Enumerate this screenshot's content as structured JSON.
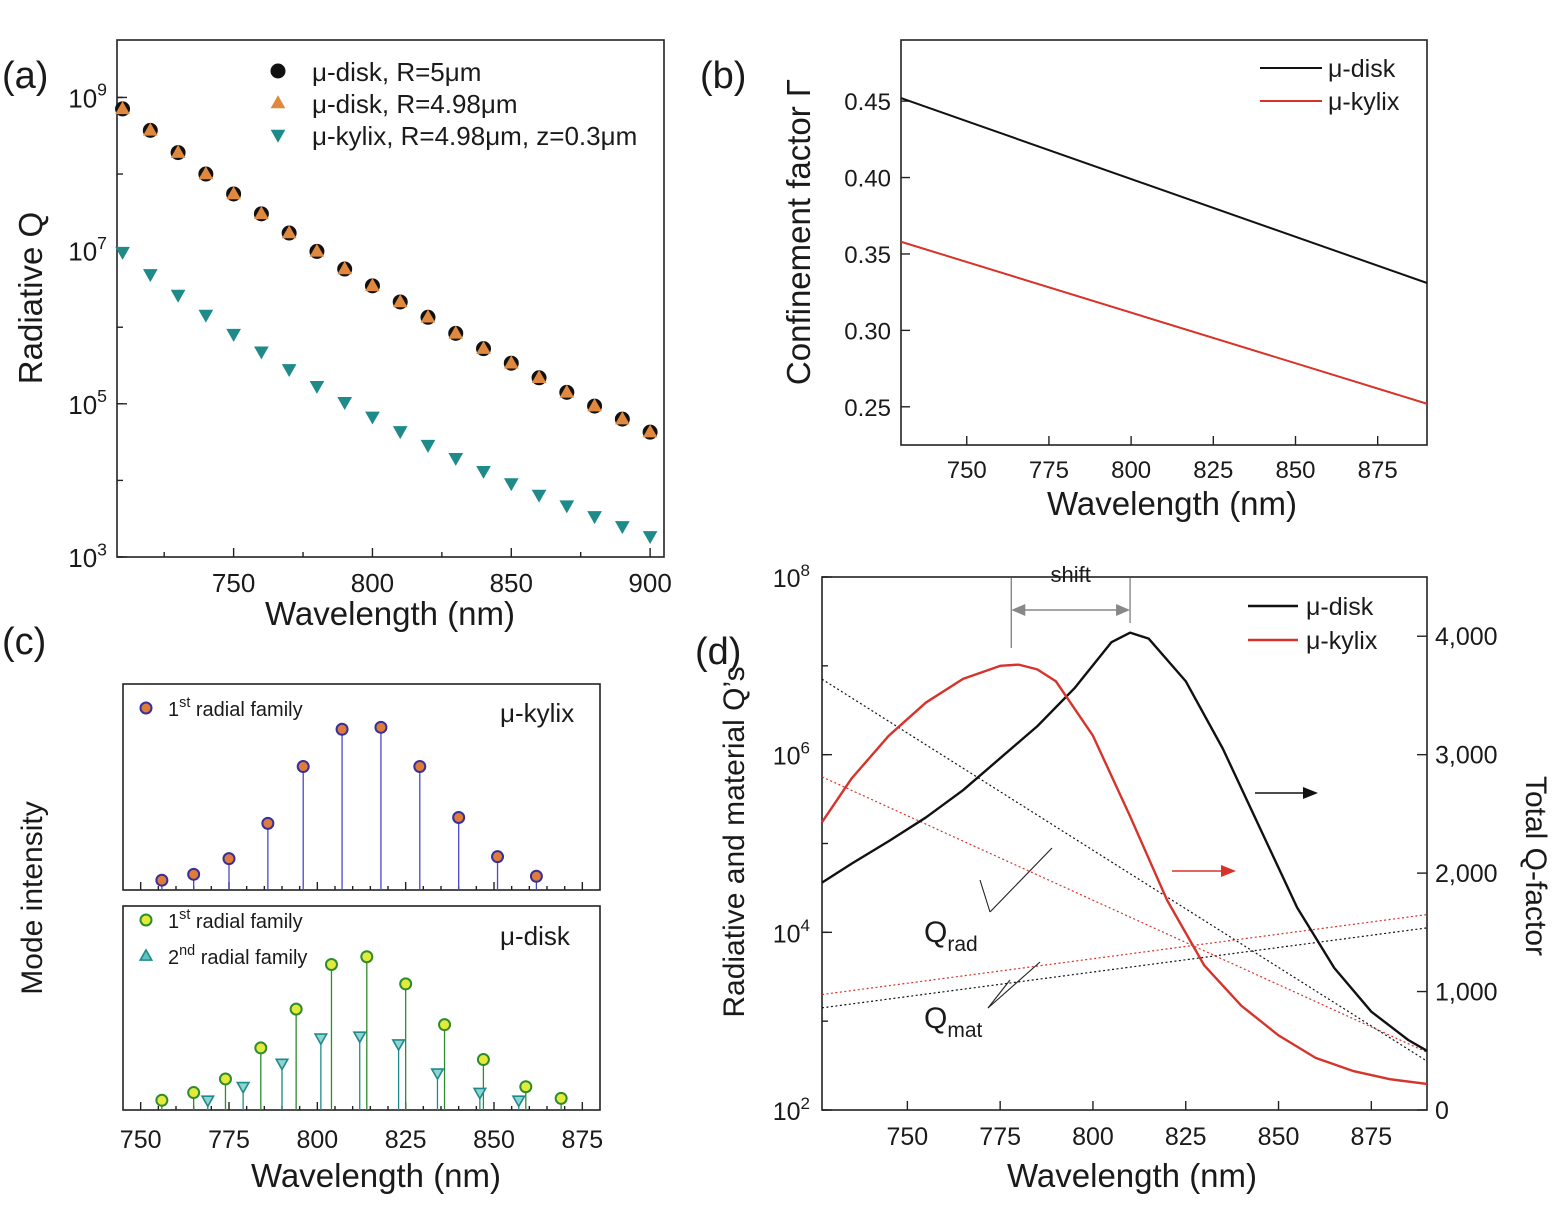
{
  "chart_data": [
    {
      "id": "a",
      "panel_label": "(a)",
      "type": "scatter",
      "yscale": "log",
      "xlabel": "Wavelength (nm)",
      "ylabel": "Radiative Q",
      "xlim": [
        708,
        905
      ],
      "ylim_log10": [
        3,
        9.75
      ],
      "xticks": [
        "750",
        "800",
        "850",
        "900"
      ],
      "yticks": [
        {
          "base": "10",
          "exp": "3"
        },
        {
          "base": "10",
          "exp": "5"
        },
        {
          "base": "10",
          "exp": "7"
        },
        {
          "base": "10",
          "exp": "9"
        }
      ],
      "legend_position": "top-right",
      "series": [
        {
          "name": "μ-disk, R=5μm",
          "marker": "circle",
          "color": "#111111",
          "x": [
            710,
            720,
            730,
            740,
            750,
            760,
            770,
            780,
            790,
            800,
            810,
            820,
            830,
            840,
            850,
            860,
            870,
            880,
            890,
            900
          ],
          "log10_q": [
            8.85,
            8.57,
            8.28,
            8.0,
            7.74,
            7.48,
            7.23,
            6.99,
            6.76,
            6.54,
            6.33,
            6.13,
            5.92,
            5.72,
            5.53,
            5.34,
            5.15,
            4.97,
            4.8,
            4.63
          ]
        },
        {
          "name": "μ-disk, R=4.98μm",
          "marker": "triangle-up",
          "color": "#e0893e",
          "x": [
            710,
            720,
            730,
            740,
            750,
            760,
            770,
            780,
            790,
            800,
            810,
            820,
            830,
            840,
            850,
            860,
            870,
            880,
            890,
            900
          ],
          "log10_q": [
            8.85,
            8.57,
            8.28,
            8.0,
            7.74,
            7.48,
            7.23,
            6.99,
            6.76,
            6.54,
            6.33,
            6.13,
            5.92,
            5.72,
            5.53,
            5.34,
            5.15,
            4.97,
            4.8,
            4.63
          ]
        },
        {
          "name": "μ-kylix, R=4.98μm, z=0.3μm",
          "marker": "triangle-down",
          "color": "#1f8a8a",
          "x": [
            710,
            720,
            730,
            740,
            750,
            760,
            770,
            780,
            790,
            800,
            810,
            820,
            830,
            840,
            850,
            860,
            870,
            880,
            890,
            900
          ],
          "log10_q": [
            6.98,
            6.69,
            6.42,
            6.16,
            5.91,
            5.68,
            5.45,
            5.23,
            5.02,
            4.83,
            4.64,
            4.46,
            4.29,
            4.12,
            3.96,
            3.81,
            3.67,
            3.53,
            3.4,
            3.27
          ]
        }
      ]
    },
    {
      "id": "b",
      "panel_label": "(b)",
      "type": "line",
      "xlabel": "Wavelength (nm)",
      "ylabel": "Confinement factor Γ",
      "xlim": [
        730,
        890
      ],
      "ylim": [
        0.225,
        0.49
      ],
      "xticks": [
        "750",
        "775",
        "800",
        "825",
        "850",
        "875"
      ],
      "yticks": [
        "0.25",
        "0.30",
        "0.35",
        "0.40",
        "0.45"
      ],
      "legend_position": "top-right",
      "series": [
        {
          "name": "μ-disk",
          "color": "#111111",
          "x": [
            730,
            890
          ],
          "y": [
            0.452,
            0.331
          ]
        },
        {
          "name": "μ-kylix",
          "color": "#d6332a",
          "x": [
            730,
            890
          ],
          "y": [
            0.358,
            0.252
          ]
        }
      ]
    },
    {
      "id": "c",
      "panel_label": "(c)",
      "type": "stem",
      "xlabel": "Wavelength (nm)",
      "ylabel": "Mode intensity",
      "xlim": [
        745,
        880
      ],
      "xticks": [
        "750",
        "775",
        "800",
        "825",
        "850",
        "875"
      ],
      "subplots": [
        {
          "title": "μ-kylix",
          "ylim": [
            0,
            1
          ],
          "legend": [
            {
              "marker": "circle",
              "color": "#e07b3a",
              "edge": "#35309a",
              "base": "1",
              "sup": "st",
              "rest": " radial family"
            }
          ],
          "series": [
            {
              "name": "1st radial family",
              "marker": "circle",
              "color": "#e07b3a",
              "edge": "#35309a",
              "stem_color": "#4b46c8",
              "x": [
                756,
                765,
                775,
                786,
                796,
                807,
                818,
                829,
                840,
                851,
                862
              ],
              "y": [
                0.05,
                0.08,
                0.16,
                0.34,
                0.63,
                0.82,
                0.83,
                0.63,
                0.37,
                0.17,
                0.07
              ]
            }
          ]
        },
        {
          "title": "μ-disk",
          "ylim": [
            0,
            1
          ],
          "legend": [
            {
              "marker": "circle",
              "color": "#e3eb3a",
              "edge": "#2e8b2e",
              "base": "1",
              "sup": "st",
              "rest": " radial family"
            },
            {
              "marker": "triangle-up",
              "color": "#5cc2c2",
              "edge": "#1f8a8a",
              "base": "2",
              "sup": "nd",
              "rest": " radial family"
            }
          ],
          "series": [
            {
              "name": "1st radial family",
              "marker": "circle",
              "color": "#e3eb3a",
              "edge": "#2e8b2e",
              "stem_color": "#2e8b2e",
              "x": [
                756,
                765,
                774,
                784,
                794,
                804,
                814,
                825,
                836,
                847,
                859,
                869
              ],
              "y": [
                0.05,
                0.09,
                0.16,
                0.32,
                0.52,
                0.75,
                0.79,
                0.65,
                0.44,
                0.26,
                0.12,
                0.06
              ]
            },
            {
              "name": "2nd radial family",
              "marker": "triangle-down",
              "color": "#8fd3d3",
              "edge": "#1f8a8a",
              "stem_color": "#1f8a8a",
              "x": [
                769,
                779,
                790,
                801,
                812,
                823,
                834,
                846,
                857
              ],
              "y": [
                0.05,
                0.12,
                0.24,
                0.37,
                0.38,
                0.34,
                0.19,
                0.09,
                0.05
              ]
            }
          ]
        }
      ]
    },
    {
      "id": "d",
      "panel_label": "(d)",
      "type": "line",
      "xlabel": "Wavelength (nm)",
      "ylabel": "Radiative and material Q’s",
      "ylabel_right": "Total Q-factor",
      "xlim": [
        727,
        890
      ],
      "ylim_left_log10": [
        2,
        8
      ],
      "ylim_right": [
        0,
        4500
      ],
      "xticks": [
        "750",
        "775",
        "800",
        "825",
        "850",
        "875"
      ],
      "yticks_left": [
        {
          "base": "10",
          "exp": "2"
        },
        {
          "base": "10",
          "exp": "4"
        },
        {
          "base": "10",
          "exp": "6"
        },
        {
          "base": "10",
          "exp": "8"
        }
      ],
      "yticks_right": [
        "0",
        "1,000",
        "2,000",
        "3,000",
        "4,000"
      ],
      "legend_position": "top-right",
      "shift_label": "shift",
      "shift_from": 778,
      "shift_to": 810,
      "annotations": [
        {
          "base": "Q",
          "sub": "rad"
        },
        {
          "base": "Q",
          "sub": "mat"
        }
      ],
      "total_q_series": [
        {
          "name": "μ-disk",
          "color": "#111111",
          "axis": "right",
          "x": [
            727,
            735,
            745,
            755,
            765,
            775,
            785,
            795,
            805,
            810,
            815,
            825,
            835,
            845,
            855,
            865,
            875,
            885,
            890
          ],
          "y": [
            1920,
            2080,
            2270,
            2470,
            2700,
            2970,
            3240,
            3560,
            3950,
            4030,
            3980,
            3620,
            3050,
            2380,
            1710,
            1200,
            830,
            590,
            500
          ]
        },
        {
          "name": "μ-kylix",
          "color": "#d6332a",
          "axis": "right",
          "x": [
            727,
            735,
            745,
            755,
            765,
            775,
            780,
            785,
            790,
            800,
            810,
            820,
            830,
            840,
            850,
            860,
            870,
            880,
            890
          ],
          "y": [
            2430,
            2800,
            3160,
            3440,
            3640,
            3750,
            3760,
            3720,
            3620,
            3160,
            2480,
            1770,
            1220,
            880,
            630,
            440,
            330,
            260,
            220
          ]
        }
      ],
      "dotted_series": [
        {
          "name": "μ-disk Q_rad",
          "color": "#111111",
          "axis": "left",
          "x": [
            727,
            890
          ],
          "log10_y": [
            6.85,
            2.55
          ]
        },
        {
          "name": "μ-kylix Q_rad",
          "color": "#d6332a",
          "axis": "left",
          "x": [
            727,
            890
          ],
          "log10_y": [
            5.75,
            2.65
          ]
        },
        {
          "name": "μ-disk Q_mat",
          "color": "#111111",
          "axis": "left",
          "x": [
            727,
            890
          ],
          "log10_y": [
            3.15,
            4.05
          ]
        },
        {
          "name": "μ-kylix Q_mat",
          "color": "#d6332a",
          "axis": "left",
          "x": [
            727,
            890
          ],
          "log10_y": [
            3.3,
            4.2
          ]
        }
      ]
    }
  ]
}
